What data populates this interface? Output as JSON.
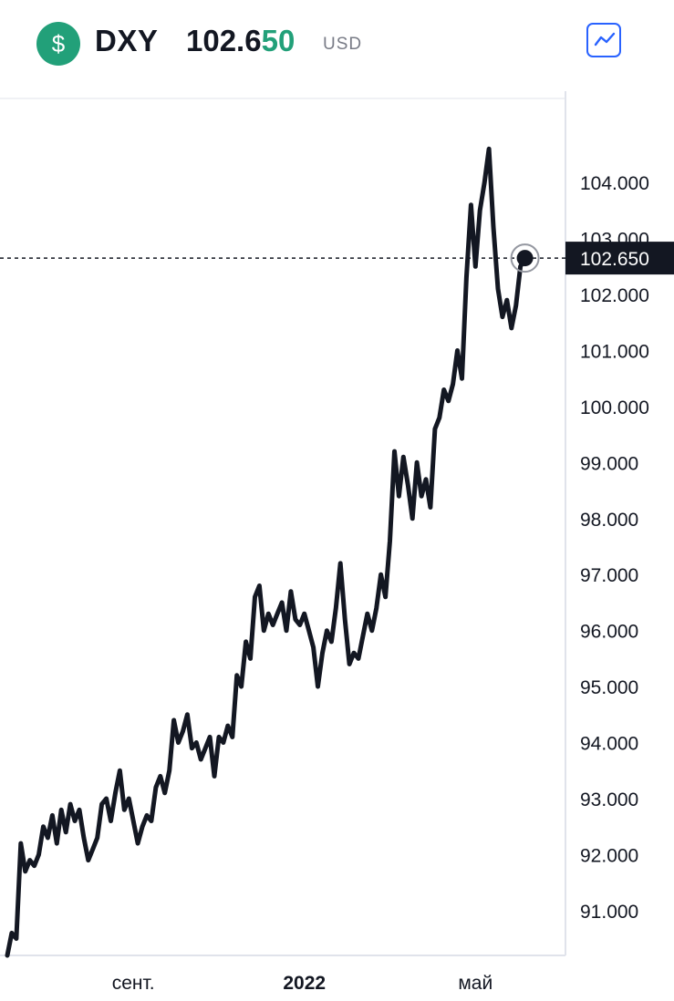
{
  "header": {
    "logo_symbol": "$",
    "ticker": "DXY",
    "price_main": "102.6",
    "price_highlight": "50",
    "currency": "USD",
    "chart_button_icon": "line-chart-icon"
  },
  "colors": {
    "brand_green": "#22a079",
    "line": "#131722",
    "accent_blue": "#2962ff",
    "axis_text": "#131722",
    "price_label_bg": "#131722"
  },
  "chart_data": {
    "type": "line",
    "title": "",
    "xlabel": "",
    "ylabel": "",
    "ylim": [
      90.2,
      105.5
    ],
    "y_ticks": [
      "91.000",
      "92.000",
      "93.000",
      "94.000",
      "95.000",
      "96.000",
      "97.000",
      "98.000",
      "99.000",
      "100.000",
      "101.000",
      "102.000",
      "103.000",
      "104.000"
    ],
    "y_tick_values": [
      91,
      92,
      93,
      94,
      95,
      96,
      97,
      98,
      99,
      100,
      101,
      102,
      103,
      104
    ],
    "x_tick_labels": [
      "сент.",
      "2022",
      "май"
    ],
    "x_tick_positions": [
      28,
      66,
      104
    ],
    "x_range": [
      0,
      124
    ],
    "last_price": 102.65,
    "last_price_label": "102.650",
    "grid": false,
    "series": [
      {
        "values": [
          90.2,
          90.6,
          90.5,
          92.2,
          91.7,
          91.9,
          91.8,
          92.0,
          92.5,
          92.3,
          92.7,
          92.2,
          92.8,
          92.4,
          92.9,
          92.6,
          92.8,
          92.3,
          91.9,
          92.1,
          92.3,
          92.9,
          93.0,
          92.6,
          93.1,
          93.5,
          92.8,
          93.0,
          92.6,
          92.2,
          92.5,
          92.7,
          92.6,
          93.2,
          93.4,
          93.1,
          93.5,
          94.4,
          94.0,
          94.2,
          94.5,
          93.9,
          94.0,
          93.7,
          93.9,
          94.1,
          93.4,
          94.1,
          94.0,
          94.3,
          94.1,
          95.2,
          95.0,
          95.8,
          95.5,
          96.6,
          96.8,
          96.0,
          96.3,
          96.1,
          96.3,
          96.5,
          96.0,
          96.7,
          96.2,
          96.1,
          96.3,
          96.0,
          95.7,
          95.0,
          95.6,
          96.0,
          95.8,
          96.4,
          97.2,
          96.2,
          95.4,
          95.6,
          95.5,
          95.9,
          96.3,
          96.0,
          96.4,
          97.0,
          96.6,
          97.6,
          99.2,
          98.4,
          99.1,
          98.6,
          98.0,
          99.0,
          98.4,
          98.7,
          98.2,
          99.6,
          99.8,
          100.3,
          100.1,
          100.4,
          101.0,
          100.5,
          102.3,
          103.6,
          102.5,
          103.5,
          104.0,
          104.6,
          103.2,
          102.1,
          101.6,
          101.9,
          101.4,
          101.8,
          102.5,
          102.65
        ]
      }
    ]
  }
}
